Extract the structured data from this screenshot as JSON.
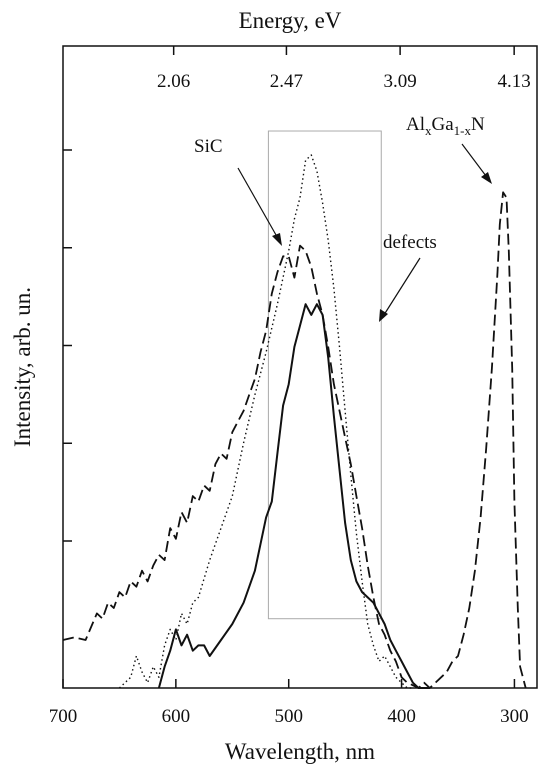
{
  "chart_data": {
    "type": "line",
    "xlabel": "Wavelength, nm",
    "ylabel": "Intensity, arb. un.",
    "top_axis_label": "Energy, eV",
    "xlim": [
      700,
      280
    ],
    "x_reversed": true,
    "ylim": [
      0,
      1.0
    ],
    "x_ticks": [
      "700",
      "600",
      "500",
      "400",
      "300"
    ],
    "x_tick_values": [
      700,
      600,
      500,
      400,
      300
    ],
    "top_ticks": [
      "2.06",
      "2.47",
      "3.09",
      "4.13"
    ],
    "top_tick_values": [
      2.06,
      2.47,
      3.09,
      4.13
    ],
    "y_tick_count": 6,
    "grid": false,
    "legend": "none",
    "annotations": {
      "sic": "SiC",
      "defects": "defects",
      "algan_base": "Al",
      "algan_sub1": "x",
      "algan_mid": "Ga",
      "algan_sub2": "1-x",
      "algan_end": "N"
    },
    "highlight_box": {
      "x_from": 518,
      "x_to": 418,
      "y_from": 0.13,
      "y_to": 1.045
    },
    "series": [
      {
        "style": "dashed",
        "x": [
          700,
          690,
          680,
          670,
          665,
          660,
          655,
          650,
          645,
          640,
          635,
          630,
          625,
          620,
          615,
          610,
          605,
          600,
          595,
          590,
          585,
          580,
          575,
          570,
          565,
          560,
          555,
          550,
          545,
          540,
          535,
          530,
          525,
          520,
          515,
          510,
          505,
          500,
          495,
          490,
          485,
          480,
          475,
          470,
          465,
          460,
          455,
          450,
          445,
          440,
          435,
          430,
          425,
          420,
          415,
          410,
          405,
          400,
          395,
          390,
          385,
          380,
          375,
          370,
          365,
          360,
          355,
          350,
          345,
          340,
          335,
          330,
          325,
          320,
          315,
          313,
          310,
          307,
          305,
          302,
          300,
          297,
          295,
          290
        ],
        "y": [
          0.09,
          0.095,
          0.09,
          0.14,
          0.13,
          0.16,
          0.15,
          0.18,
          0.17,
          0.2,
          0.19,
          0.22,
          0.2,
          0.23,
          0.25,
          0.24,
          0.3,
          0.28,
          0.33,
          0.31,
          0.36,
          0.35,
          0.38,
          0.37,
          0.42,
          0.44,
          0.43,
          0.48,
          0.5,
          0.52,
          0.55,
          0.58,
          0.63,
          0.67,
          0.74,
          0.78,
          0.81,
          0.81,
          0.77,
          0.83,
          0.82,
          0.79,
          0.74,
          0.7,
          0.64,
          0.57,
          0.52,
          0.47,
          0.42,
          0.36,
          0.3,
          0.23,
          0.17,
          0.12,
          0.1,
          0.07,
          0.05,
          0.02,
          0.01,
          0.005,
          0.0,
          0.01,
          0.0,
          0.01,
          0.02,
          0.03,
          0.05,
          0.06,
          0.1,
          0.15,
          0.22,
          0.32,
          0.45,
          0.6,
          0.78,
          0.87,
          0.93,
          0.92,
          0.82,
          0.6,
          0.35,
          0.15,
          0.04,
          0.0
        ]
      },
      {
        "style": "dotted",
        "x": [
          650,
          640,
          635,
          630,
          625,
          620,
          615,
          610,
          605,
          600,
          595,
          590,
          585,
          580,
          570,
          560,
          550,
          540,
          530,
          520,
          510,
          500,
          495,
          490,
          485,
          480,
          475,
          470,
          465,
          460,
          455,
          450,
          445,
          440,
          435,
          430,
          425,
          420,
          415,
          410,
          405,
          400,
          395,
          390
        ],
        "y": [
          0.0,
          0.02,
          0.06,
          0.03,
          0.01,
          0.04,
          0.02,
          0.08,
          0.11,
          0.09,
          0.14,
          0.12,
          0.16,
          0.17,
          0.24,
          0.3,
          0.36,
          0.46,
          0.55,
          0.63,
          0.72,
          0.82,
          0.88,
          0.92,
          0.99,
          1.0,
          0.97,
          0.91,
          0.84,
          0.75,
          0.64,
          0.52,
          0.4,
          0.29,
          0.2,
          0.12,
          0.08,
          0.05,
          0.06,
          0.04,
          0.02,
          0.01,
          0.0,
          0.0
        ]
      },
      {
        "style": "solid",
        "x": [
          615,
          610,
          605,
          600,
          595,
          590,
          585,
          580,
          575,
          570,
          560,
          550,
          540,
          530,
          525,
          520,
          515,
          510,
          505,
          500,
          495,
          490,
          485,
          480,
          475,
          470,
          465,
          460,
          455,
          450,
          445,
          440,
          435,
          430,
          425,
          420,
          415,
          410,
          405,
          400,
          395,
          390,
          385,
          380,
          375
        ],
        "y": [
          0.0,
          0.04,
          0.07,
          0.11,
          0.08,
          0.1,
          0.07,
          0.08,
          0.08,
          0.06,
          0.09,
          0.12,
          0.16,
          0.22,
          0.27,
          0.32,
          0.35,
          0.44,
          0.53,
          0.57,
          0.64,
          0.68,
          0.72,
          0.7,
          0.72,
          0.7,
          0.62,
          0.51,
          0.41,
          0.31,
          0.24,
          0.2,
          0.18,
          0.17,
          0.16,
          0.14,
          0.12,
          0.09,
          0.07,
          0.05,
          0.03,
          0.01,
          0.0,
          0.0,
          0.0
        ]
      }
    ]
  }
}
